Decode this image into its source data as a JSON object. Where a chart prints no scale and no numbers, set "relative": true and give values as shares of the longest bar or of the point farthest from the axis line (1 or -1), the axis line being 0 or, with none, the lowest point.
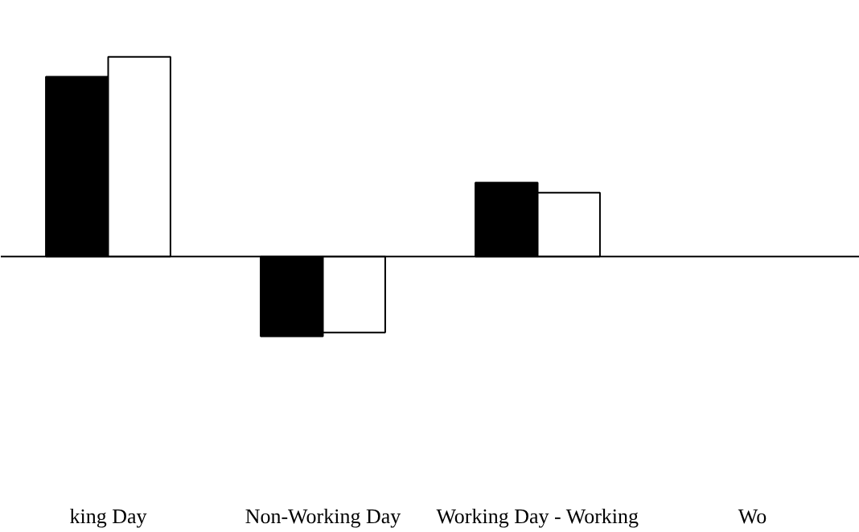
{
  "chart_data": {
    "type": "bar",
    "relative": true,
    "categories": [
      "king Day",
      "Non-Working Day",
      "Working Day - Working",
      "Wo"
    ],
    "series": [
      {
        "color": "#000000",
        "values": [
          0.9,
          -0.4,
          0.37,
          null
        ]
      },
      {
        "color": "#ffffff",
        "values": [
          1.0,
          -0.38,
          0.32,
          null
        ]
      }
    ],
    "grid": false
  }
}
